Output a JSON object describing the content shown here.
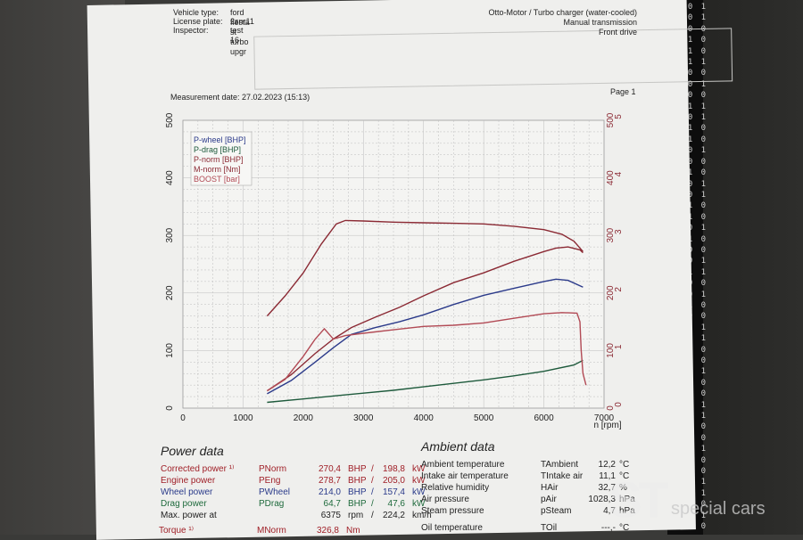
{
  "header": {
    "vehicle_type_label": "Vehicle type:",
    "vehicle_type": "ford fiesta st turbo upgr",
    "license_plate_label": "License plate:",
    "license_plate": "2snr11",
    "inspector_label": "Inspector:",
    "inspector": "test 16",
    "engine": "Otto-Motor / Turbo charger (water-cooled)",
    "transmission": "Manual transmission",
    "drive": "Front drive",
    "measurement_date": "Measurement date: 27.02.2023 (15:13)",
    "page": "Page 1"
  },
  "chart_data": {
    "type": "line",
    "xlabel": "n [rpm]",
    "xlim": [
      0,
      7000
    ],
    "xticks": [
      "0",
      "1000",
      "2000",
      "3000",
      "4000",
      "5000",
      "6000",
      "7000"
    ],
    "ylim_left": [
      0,
      500
    ],
    "yticks_left": [
      "0",
      "100",
      "200",
      "300",
      "400",
      "500"
    ],
    "yticks_right_torque": [
      "0",
      "100",
      "200",
      "300",
      "400",
      "500"
    ],
    "yticks_right_boost": [
      "0",
      "1",
      "2",
      "3",
      "4",
      "5"
    ],
    "legend": [
      "P-wheel [BHP]",
      "P-drag [BHP]",
      "P-norm [BHP]",
      "M-norm [Nm]",
      "BOOST [bar]"
    ],
    "legend_position": "top-left",
    "grid": true,
    "series": [
      {
        "name": "P-wheel [BHP]",
        "color": "#2b3a8a",
        "x": [
          1400,
          1800,
          2200,
          2500,
          2800,
          3200,
          3600,
          4000,
          4500,
          5000,
          5500,
          6000,
          6200,
          6400,
          6650
        ],
        "y": [
          25,
          48,
          80,
          105,
          128,
          140,
          150,
          162,
          180,
          196,
          208,
          220,
          224,
          222,
          210
        ]
      },
      {
        "name": "P-drag [BHP]",
        "color": "#1e5a3c",
        "x": [
          1400,
          2000,
          2500,
          3000,
          3500,
          4000,
          4500,
          5000,
          5500,
          6000,
          6500,
          6650
        ],
        "y": [
          10,
          16,
          21,
          26,
          31,
          37,
          43,
          49,
          56,
          64,
          75,
          83
        ]
      },
      {
        "name": "P-norm [BHP]",
        "color": "#8b2a34",
        "x": [
          1400,
          1800,
          2200,
          2500,
          2800,
          3200,
          3600,
          4000,
          4500,
          5000,
          5500,
          6000,
          6200,
          6400,
          6600,
          6650
        ],
        "y": [
          30,
          58,
          95,
          120,
          140,
          158,
          175,
          195,
          218,
          235,
          255,
          272,
          278,
          280,
          275,
          270
        ]
      },
      {
        "name": "M-norm [Nm]",
        "color": "#8b2a34",
        "x": [
          1400,
          1700,
          2000,
          2300,
          2550,
          2700,
          3000,
          3500,
          4000,
          4500,
          5000,
          5500,
          6000,
          6300,
          6500,
          6650
        ],
        "y": [
          160,
          195,
          235,
          285,
          320,
          326,
          325,
          323,
          322,
          321,
          320,
          316,
          310,
          302,
          290,
          272
        ]
      },
      {
        "name": "BOOST [bar]",
        "color": "#b24a55",
        "x": [
          1400,
          1700,
          2000,
          2200,
          2350,
          2500,
          2700,
          3000,
          3500,
          4000,
          4500,
          5000,
          5500,
          6000,
          6300,
          6550,
          6600,
          6620,
          6650,
          6700
        ],
        "y": [
          0.3,
          0.5,
          0.9,
          1.2,
          1.38,
          1.2,
          1.26,
          1.3,
          1.36,
          1.42,
          1.44,
          1.48,
          1.56,
          1.64,
          1.66,
          1.65,
          1.5,
          1.0,
          0.6,
          0.4
        ]
      }
    ]
  },
  "power_data": {
    "title": "Power data",
    "rows": [
      {
        "label": "Corrected power ¹⁾",
        "symbol": "PNorm",
        "v1": "270,4",
        "u1": "BHP",
        "v2": "198,8",
        "u2": "kW",
        "color": "#a02028"
      },
      {
        "label": "Engine power",
        "symbol": "PEng",
        "v1": "278,7",
        "u1": "BHP",
        "v2": "205,0",
        "u2": "kW",
        "color": "#a02028"
      },
      {
        "label": "Wheel power",
        "symbol": "PWheel",
        "v1": "214,0",
        "u1": "BHP",
        "v2": "157,4",
        "u2": "kW",
        "color": "#2a3a8a"
      },
      {
        "label": "Drag power",
        "symbol": "PDrag",
        "v1": "64,7",
        "u1": "BHP",
        "v2": "47,6",
        "u2": "kW",
        "color": "#1e6a3c"
      }
    ],
    "max_power_at_label": "Max. power at",
    "max_rpm": "6375",
    "rpm_unit": "rpm",
    "max_speed": "224,2",
    "speed_unit": "km/h",
    "torque_label": "Torque ¹⁾",
    "torque_symbol": "MNorm",
    "torque_value": "326,8",
    "torque_unit": "Nm"
  },
  "ambient_data": {
    "title": "Ambient data",
    "rows": [
      {
        "label": "Ambient temperature",
        "symbol": "TAmbient",
        "value": "12,2",
        "unit": "°C"
      },
      {
        "label": "Intake air temperature",
        "symbol": "TIntake air",
        "value": "11,1",
        "unit": "°C"
      },
      {
        "label": "Relative humidity",
        "symbol": "HAir",
        "value": "32,7",
        "unit": "%"
      },
      {
        "label": "Air pressure",
        "symbol": "pAir",
        "value": "1028,3",
        "unit": "hPa"
      },
      {
        "label": "Steam pressure",
        "symbol": "pSteam",
        "value": "4,7",
        "unit": "hPa"
      },
      {
        "label": "Oil temperature",
        "symbol": "TOil",
        "value": "---,-",
        "unit": "°C"
      }
    ]
  },
  "watermark": {
    "logo": "ST",
    "text": "special cars"
  },
  "side_code": "0 0 1\n0 0 1\n1 0 0\n0 1 0\n0 1 0\n0 1 1\n1 0 0\n0 0 1\n1 0 0\n0 1 1\n0 0 1\n1 1 0\n0 1 0\n0 0 1\n1 0 0\n0 1 0\n0 0 1\n1 0 1\n0 1 0\n1 1 0\n0 0 1\n0 1 0\n1 0 0\n0 0 1\n0 1 1\n1 0 0\n0 0 1\n0 1 0\n1 0 0\n0 1 1\n0 0 1\n1 1 0\n0 1 0\n0 0 1\n1 0 0\n0 1 0\n0 0 1\n1 0 1\n0 1 0\n1 1 0\n0 0 1\n0 1 0\n1 0 0\n0 0 1\n0 1 1\n1 0 0\n0 0 1\n0 1 0"
}
